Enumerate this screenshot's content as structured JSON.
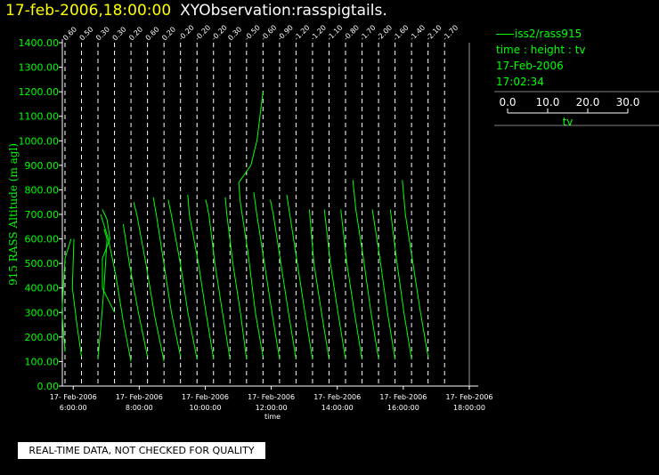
{
  "header": {
    "timestamp": "17-feb-2006,18:00:00",
    "observation": "XYObservation:rasspigtails."
  },
  "legend": {
    "series": "iss2/rass915",
    "description": "time : height : tv",
    "date": "17-Feb-2006",
    "time": "17:02:34",
    "scale_ticks": [
      "0.0",
      "10.0",
      "20.0",
      "30.0"
    ],
    "scale_label": "tv"
  },
  "footer": {
    "disclaimer": "REAL-TIME DATA, NOT CHECKED FOR QUALITY"
  },
  "colors": {
    "background": "#000000",
    "data": "#00ff00",
    "axis": "#ffffff",
    "title": "#ffff00"
  },
  "chart_data": {
    "type": "line",
    "ylabel": "915 RASS Altitude (m agl)",
    "xlabel": "time",
    "ylim": [
      0,
      1400
    ],
    "xlim": [
      5.67,
      18.0
    ],
    "yticks": [
      "0.00",
      "100.00",
      "200.00",
      "300.00",
      "400.00",
      "500.00",
      "600.00",
      "700.00",
      "800.00",
      "900.00",
      "1000.00",
      "1100.00",
      "1200.00",
      "1300.00",
      "1400.00"
    ],
    "xticks": [
      {
        "x": 6,
        "date": "17- Feb-2006",
        "time": "6:00:00"
      },
      {
        "x": 8,
        "date": "17- Feb-2006",
        "time": "8:00:00"
      },
      {
        "x": 10,
        "date": "17- Feb-2006",
        "time": "10:00:00"
      },
      {
        "x": 12,
        "date": "17- Feb-2006",
        "time": "12:00:00"
      },
      {
        "x": 14,
        "date": "17- Feb-2006",
        "time": "14:00:00"
      },
      {
        "x": 16,
        "date": "17- Feb-2006",
        "time": "16:00:00"
      },
      {
        "x": 18,
        "date": "17- Feb-2006",
        "time": "18:00:00"
      }
    ],
    "profiles": [
      {
        "x": 5.75,
        "label": "0.60",
        "points": [
          [
            0.0,
            140
          ],
          [
            -0.2,
            300
          ],
          [
            0.0,
            520
          ],
          [
            0.4,
            600
          ]
        ]
      },
      {
        "x": 6.25,
        "label": "0.50",
        "points": [
          [
            0.0,
            120
          ],
          [
            -0.3,
            250
          ],
          [
            -0.6,
            400
          ],
          [
            -0.5,
            600
          ]
        ]
      },
      {
        "x": 6.75,
        "label": "0.30",
        "points": [
          [
            0.0,
            110
          ],
          [
            0.2,
            250
          ],
          [
            0.4,
            400
          ],
          [
            0.6,
            600
          ],
          [
            0.4,
            640
          ]
        ]
      },
      {
        "x": 7.25,
        "label": "0.30",
        "points": [
          [
            0.0,
            300
          ],
          [
            -0.8,
            400
          ],
          [
            -0.8,
            520
          ],
          [
            -0.3,
            600
          ],
          [
            -0.5,
            680
          ],
          [
            -0.8,
            720
          ]
        ]
      },
      {
        "x": 7.75,
        "label": "0.20",
        "points": [
          [
            0.0,
            100
          ],
          [
            -0.5,
            260
          ],
          [
            -1.0,
            450
          ],
          [
            -1.5,
            600
          ],
          [
            -2.0,
            700
          ]
        ]
      },
      {
        "x": 8.25,
        "label": "0.60",
        "points": [
          [
            0.0,
            120
          ],
          [
            -0.6,
            300
          ],
          [
            -1.2,
            500
          ],
          [
            -1.6,
            660
          ]
        ]
      },
      {
        "x": 8.75,
        "label": "0.20",
        "points": [
          [
            0.0,
            100
          ],
          [
            -0.6,
            280
          ],
          [
            -1.2,
            500
          ],
          [
            -1.8,
            700
          ],
          [
            -2.0,
            750
          ]
        ]
      },
      {
        "x": 9.25,
        "label": "-0.20",
        "points": [
          [
            0.0,
            120
          ],
          [
            -0.6,
            300
          ],
          [
            -1.1,
            500
          ],
          [
            -1.6,
            700
          ],
          [
            -1.8,
            770
          ]
        ]
      },
      {
        "x": 9.75,
        "label": "-0.20",
        "points": [
          [
            0.0,
            110
          ],
          [
            -0.6,
            300
          ],
          [
            -1.1,
            500
          ],
          [
            -1.7,
            700
          ],
          [
            -1.9,
            760
          ]
        ]
      },
      {
        "x": 10.25,
        "label": "-0.20",
        "points": [
          [
            0.0,
            110
          ],
          [
            -0.5,
            300
          ],
          [
            -1.0,
            500
          ],
          [
            -1.6,
            700
          ],
          [
            -1.7,
            780
          ]
        ]
      },
      {
        "x": 10.75,
        "label": "0.30",
        "points": [
          [
            0.0,
            110
          ],
          [
            -0.5,
            300
          ],
          [
            -1.0,
            500
          ],
          [
            -1.4,
            700
          ],
          [
            -1.6,
            760
          ]
        ]
      },
      {
        "x": 11.25,
        "label": "-0.50",
        "points": [
          [
            0.0,
            110
          ],
          [
            -0.4,
            300
          ],
          [
            -0.9,
            500
          ],
          [
            -1.3,
            700
          ],
          [
            -1.4,
            770
          ]
        ]
      },
      {
        "x": 11.75,
        "label": "-0.60",
        "points": [
          [
            0.0,
            120
          ],
          [
            -0.5,
            300
          ],
          [
            -1.0,
            550
          ],
          [
            -1.5,
            750
          ],
          [
            -1.6,
            830
          ],
          [
            -0.8,
            900
          ],
          [
            -0.4,
            1000
          ],
          [
            0.0,
            1200
          ]
        ]
      },
      {
        "x": 12.25,
        "label": "-0.90",
        "points": [
          [
            0.0,
            110
          ],
          [
            -0.5,
            300
          ],
          [
            -1.0,
            500
          ],
          [
            -1.5,
            700
          ],
          [
            -1.7,
            790
          ]
        ]
      },
      {
        "x": 12.75,
        "label": "-1.20",
        "points": [
          [
            0.0,
            110
          ],
          [
            -0.5,
            300
          ],
          [
            -1.0,
            500
          ],
          [
            -1.5,
            700
          ],
          [
            -1.7,
            760
          ]
        ]
      },
      {
        "x": 13.25,
        "label": "-1.20",
        "points": [
          [
            0.0,
            110
          ],
          [
            -0.5,
            300
          ],
          [
            -1.0,
            500
          ],
          [
            -1.5,
            700
          ],
          [
            -1.7,
            780
          ]
        ]
      },
      {
        "x": 13.75,
        "label": "-1.10",
        "points": [
          [
            0.0,
            110
          ],
          [
            -0.5,
            300
          ],
          [
            -1.0,
            500
          ],
          [
            -1.3,
            720
          ]
        ]
      },
      {
        "x": 14.25,
        "label": "-0.80",
        "points": [
          [
            0.0,
            110
          ],
          [
            -0.5,
            300
          ],
          [
            -1.0,
            500
          ],
          [
            -1.4,
            720
          ]
        ]
      },
      {
        "x": 14.75,
        "label": "-1.70",
        "points": [
          [
            0.0,
            110
          ],
          [
            -0.5,
            300
          ],
          [
            -1.0,
            500
          ],
          [
            -1.4,
            720
          ]
        ]
      },
      {
        "x": 15.25,
        "label": "-2.00",
        "points": [
          [
            0.0,
            110
          ],
          [
            -0.5,
            300
          ],
          [
            -1.0,
            520
          ],
          [
            -1.5,
            720
          ],
          [
            -1.7,
            840
          ]
        ]
      },
      {
        "x": 15.75,
        "label": "-1.60",
        "points": [
          [
            0.0,
            110
          ],
          [
            -0.5,
            300
          ],
          [
            -1.0,
            520
          ],
          [
            -1.5,
            720
          ]
        ]
      },
      {
        "x": 16.25,
        "label": "-1.40",
        "points": [
          [
            0.0,
            110
          ],
          [
            -0.5,
            300
          ],
          [
            -1.0,
            520
          ],
          [
            -1.4,
            720
          ]
        ]
      },
      {
        "x": 16.75,
        "label": "-2.10",
        "points": [
          [
            0.0,
            120
          ],
          [
            -0.5,
            300
          ],
          [
            -1.0,
            500
          ],
          [
            -1.5,
            700
          ],
          [
            -1.7,
            840
          ]
        ]
      },
      {
        "x": 17.25,
        "label": "-1.70",
        "points": []
      }
    ]
  }
}
